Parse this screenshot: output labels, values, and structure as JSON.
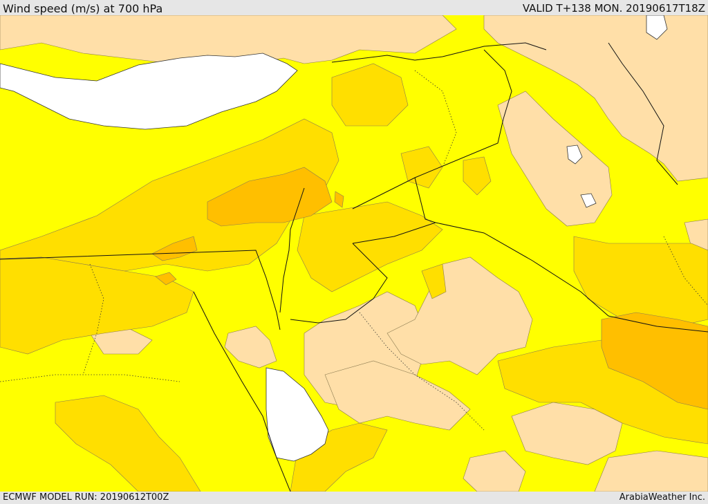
{
  "header": {
    "title": "Wind speed (m/s) at 700 hPa",
    "valid": "VALID T+138 MON. 20190617T18Z"
  },
  "footer": {
    "model_run": "ECMWF MODEL RUN: 20190612T00Z",
    "credit": "ArabiaWeather Inc."
  },
  "colors": {
    "water": "#ffffff",
    "peach": "#ffdfa8",
    "yellow": "#ffff00",
    "light_orange": "#ffdf00",
    "orange": "#ffbf00",
    "coast_line": "#333333",
    "border_line": "#111111"
  }
}
